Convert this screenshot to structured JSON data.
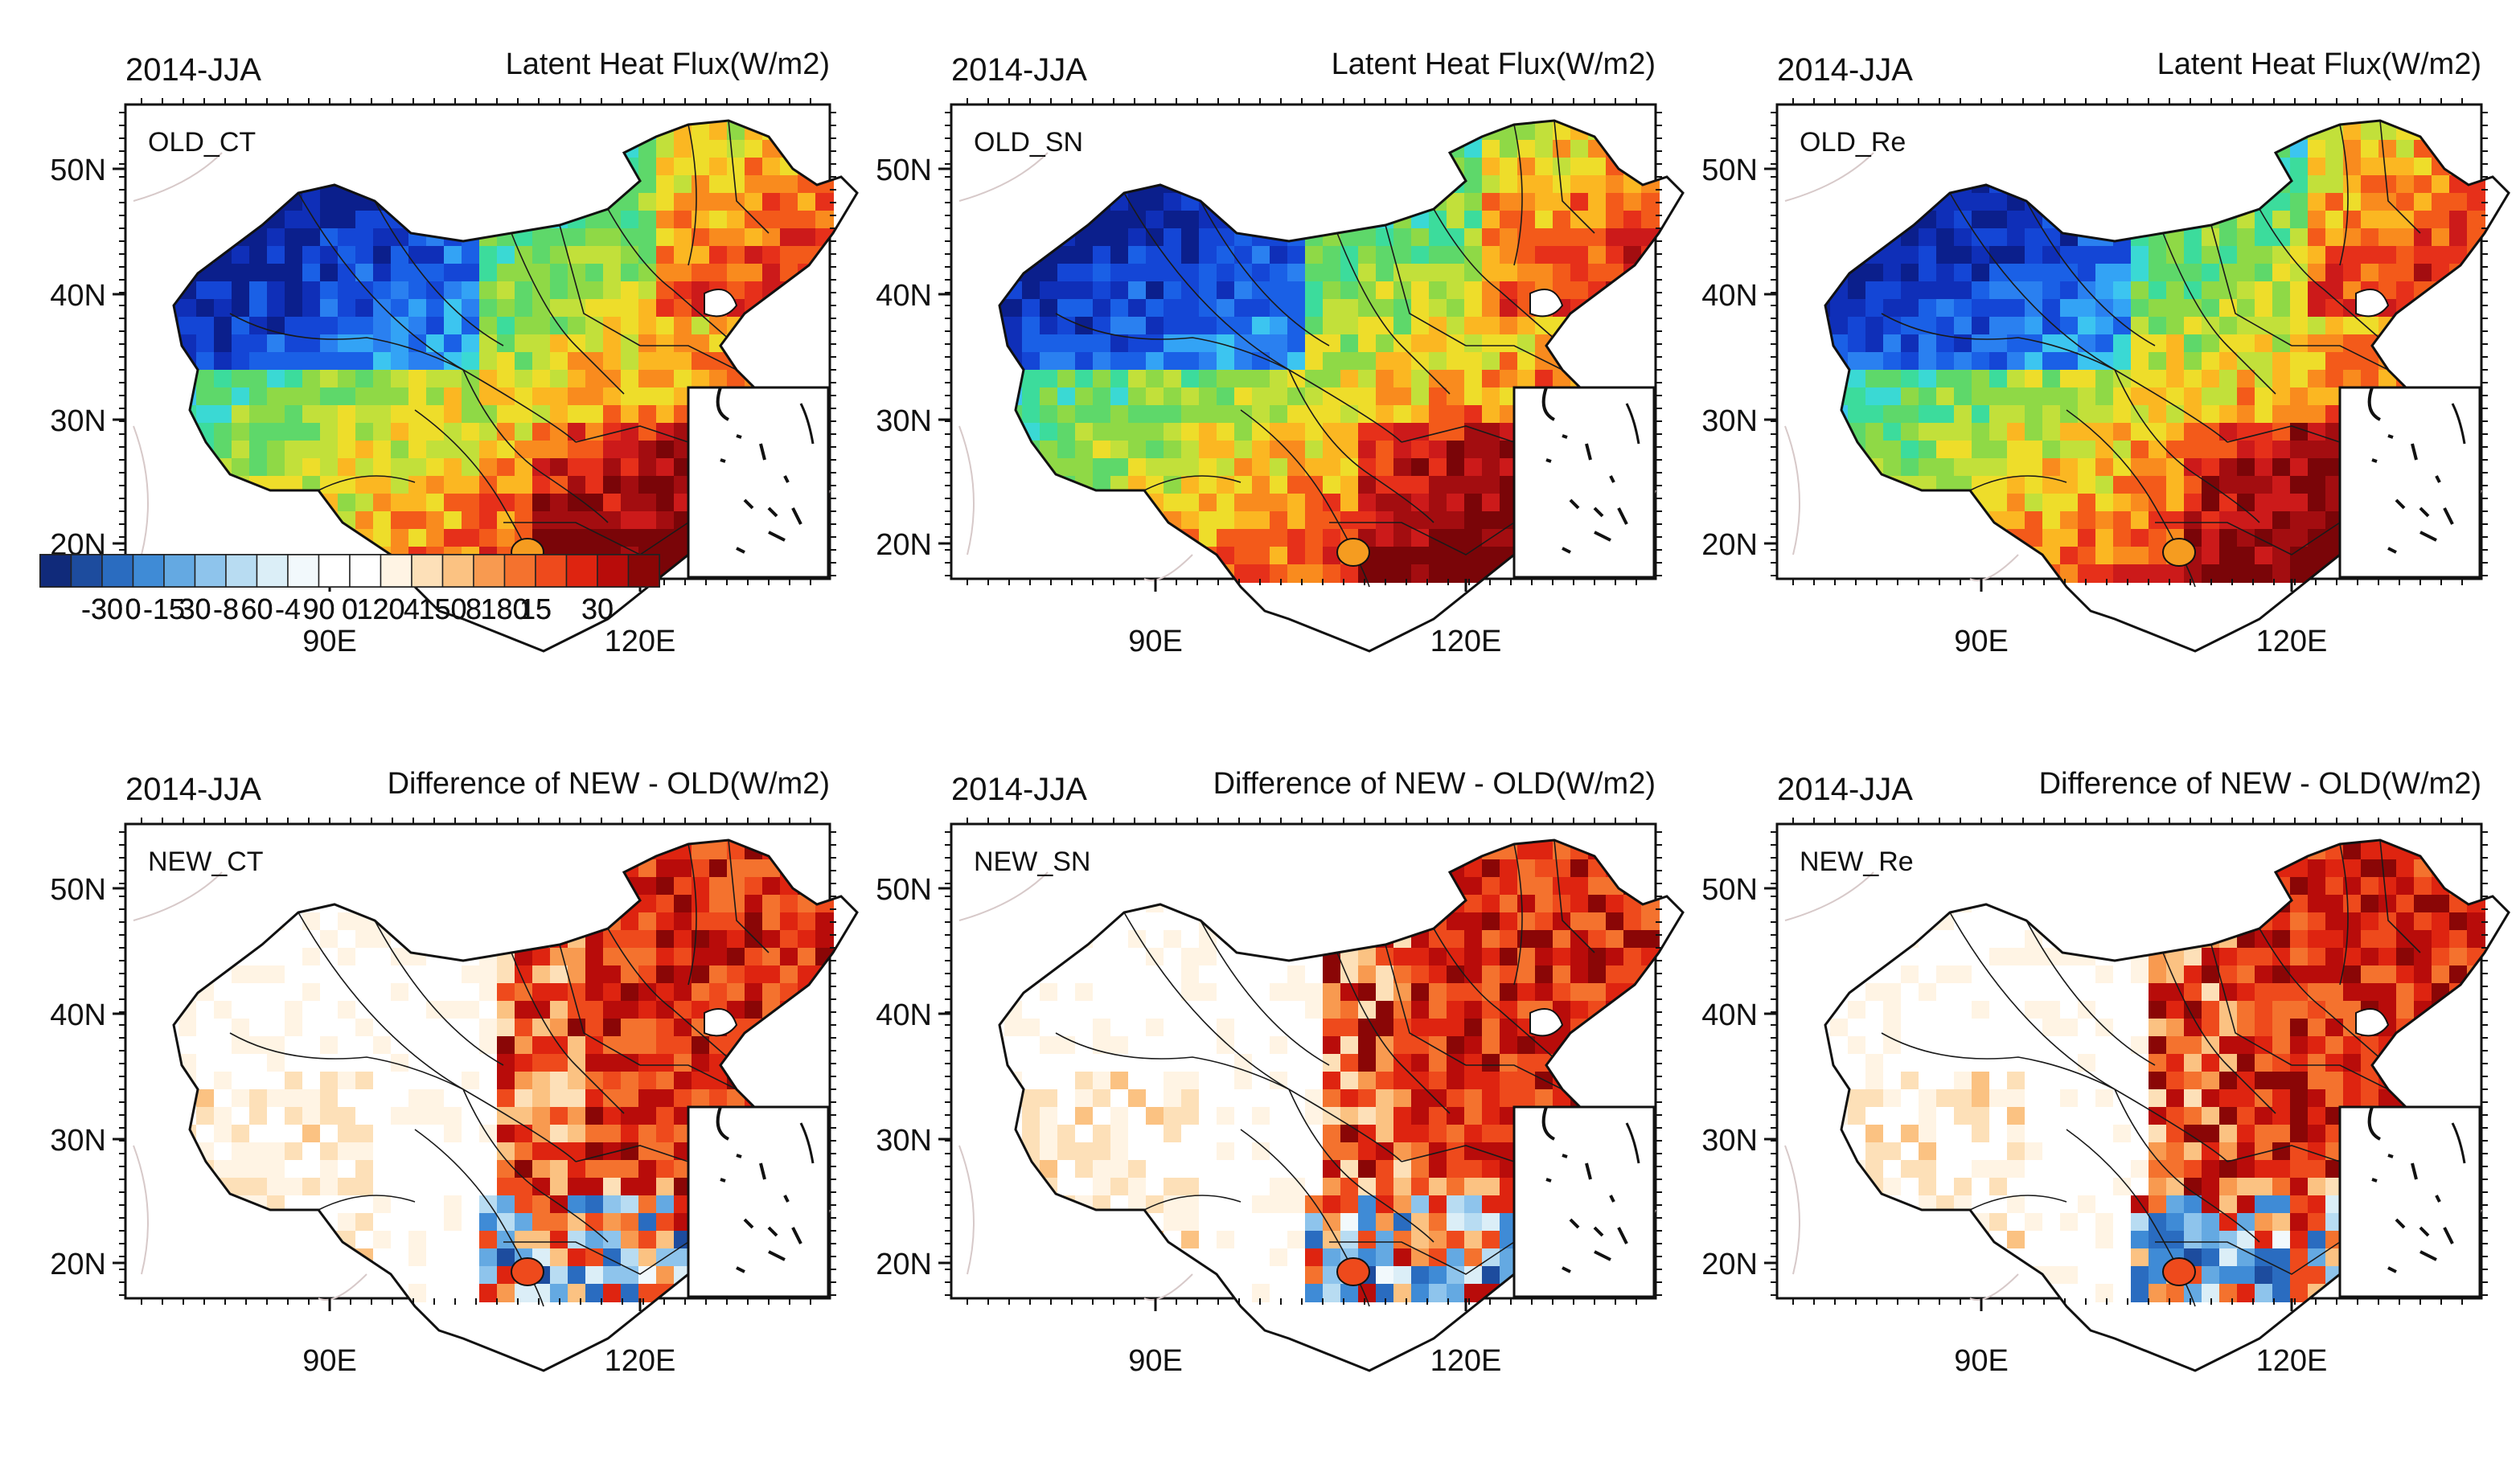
{
  "figure": {
    "lat_ticks": [
      "50N",
      "40N",
      "30N",
      "20N"
    ],
    "lon_ticks": [
      "90E",
      "120E"
    ],
    "panels": [
      {
        "period": "2014-JJA",
        "title": "Latent Heat Flux(W/m2)",
        "label": "OLD_CT",
        "kind": "abs"
      },
      {
        "period": "2014-JJA",
        "title": "Latent Heat Flux(W/m2)",
        "label": "OLD_SN",
        "kind": "abs"
      },
      {
        "period": "2014-JJA",
        "title": "Latent Heat Flux(W/m2)",
        "label": "OLD_Re",
        "kind": "abs"
      },
      {
        "period": "2014-JJA",
        "title": "Difference of NEW - OLD(W/m2)",
        "label": "NEW_CT",
        "kind": "diff"
      },
      {
        "period": "2014-JJA",
        "title": "Difference of NEW - OLD(W/m2)",
        "label": "NEW_SN",
        "kind": "diff"
      },
      {
        "period": "2014-JJA",
        "title": "Difference of NEW - OLD(W/m2)",
        "label": "NEW_Re",
        "kind": "diff"
      }
    ],
    "colorbars": {
      "abs": {
        "labels": [
          "0",
          "30",
          "60",
          "90",
          "120",
          "150",
          "180"
        ],
        "colors": [
          "#0b1f8c",
          "#0f2fb8",
          "#1446d6",
          "#1a60e6",
          "#2a80f0",
          "#33a3f5",
          "#3cc5f0",
          "#3ad9d4",
          "#3cdc9c",
          "#5ed86a",
          "#8fd946",
          "#c2e03a",
          "#eedd2a",
          "#fbb722",
          "#f98b1e",
          "#f35a1a",
          "#e6301a",
          "#cc1a1a",
          "#a30d10",
          "#7a0508"
        ]
      },
      "diff": {
        "labels": [
          "-30",
          "-15",
          "-8",
          "-4",
          "0",
          "4",
          "8",
          "15",
          "30"
        ],
        "colors": [
          "#102a7a",
          "#1d4c9e",
          "#2a6cc0",
          "#3f8bd6",
          "#64a9e2",
          "#8ec4ec",
          "#b8dcf2",
          "#dbeef7",
          "#f2f9fc",
          "#ffffff",
          "#ffffff",
          "#fff4e4",
          "#fde0b8",
          "#fbc282",
          "#f89a50",
          "#f4722e",
          "#ee4a1c",
          "#de2410",
          "#b80c0a",
          "#8a0606"
        ]
      }
    }
  }
}
